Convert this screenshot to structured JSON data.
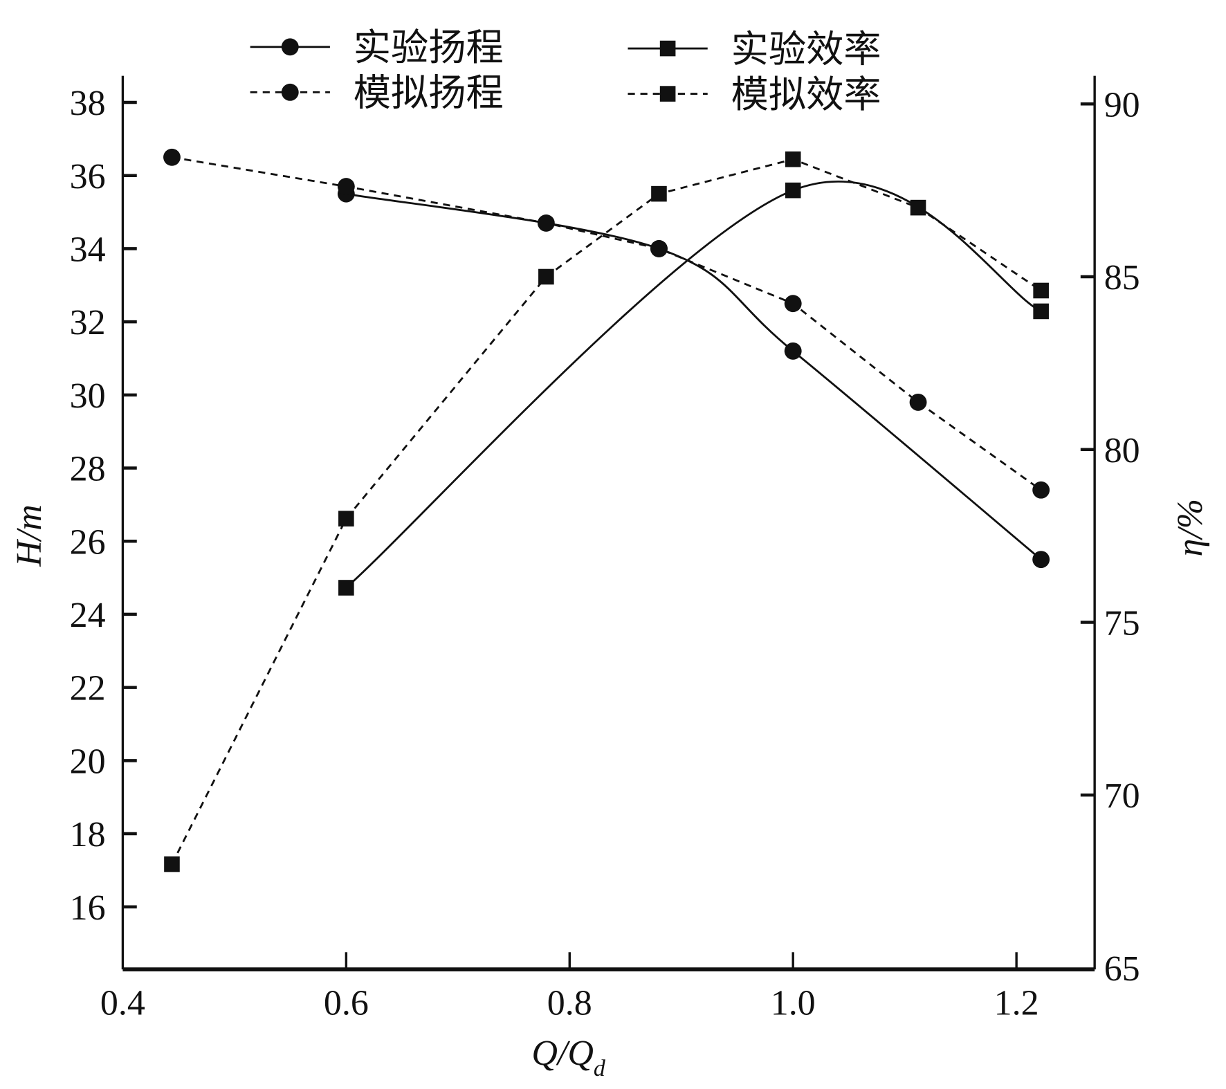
{
  "chart_data": {
    "type": "line",
    "title": "",
    "xlabel": "Q/Q",
    "xlabel_sub": "d",
    "ylabel_left": "H/m",
    "ylabel_right": "η/%",
    "xlim": [
      0.4,
      1.27
    ],
    "ylim_left": [
      14.3,
      38.8
    ],
    "ylim_right": [
      65,
      91
    ],
    "x_ticks": [
      0.4,
      0.6,
      0.8,
      1.0,
      1.2
    ],
    "x_tick_labels": [
      "0.4",
      "0.6",
      "0.8",
      "1.0",
      "1.2"
    ],
    "y_left_ticks": [
      16,
      18,
      20,
      22,
      24,
      26,
      28,
      30,
      32,
      34,
      36,
      38
    ],
    "y_left_tick_labels": [
      "16",
      "18",
      "20",
      "22",
      "24",
      "26",
      "28",
      "30",
      "32",
      "34",
      "36",
      "38"
    ],
    "y_right_ticks": [
      65,
      70,
      75,
      80,
      85,
      90
    ],
    "y_right_tick_labels": [
      "65",
      "70",
      "75",
      "80",
      "85",
      "90"
    ],
    "grid": false,
    "legend_position": "top",
    "series": [
      {
        "name": "实验扬程",
        "axis": "left",
        "marker": "circle",
        "dash": false,
        "smooth": true,
        "x": [
          0.6,
          0.88,
          1.0,
          1.222
        ],
        "y": [
          35.5,
          34.0,
          31.2,
          25.5
        ]
      },
      {
        "name": "模拟扬程",
        "axis": "left",
        "marker": "circle",
        "dash": true,
        "smooth": false,
        "x": [
          0.444,
          0.6,
          0.779,
          0.88,
          1.0,
          1.112,
          1.222
        ],
        "y": [
          36.5,
          35.7,
          34.7,
          34.0,
          32.5,
          29.8,
          27.4
        ]
      },
      {
        "name": "实验效率",
        "axis": "right",
        "marker": "square",
        "dash": false,
        "smooth": true,
        "x": [
          0.6,
          1.0,
          1.222
        ],
        "y": [
          76.0,
          87.5,
          84.0
        ]
      },
      {
        "name": "模拟效率",
        "axis": "right",
        "marker": "square",
        "dash": true,
        "smooth": false,
        "x": [
          0.444,
          0.6,
          0.779,
          0.88,
          1.0,
          1.112,
          1.222
        ],
        "y": [
          68.0,
          78.0,
          85.0,
          87.4,
          88.4,
          87.0,
          84.6
        ]
      }
    ]
  }
}
